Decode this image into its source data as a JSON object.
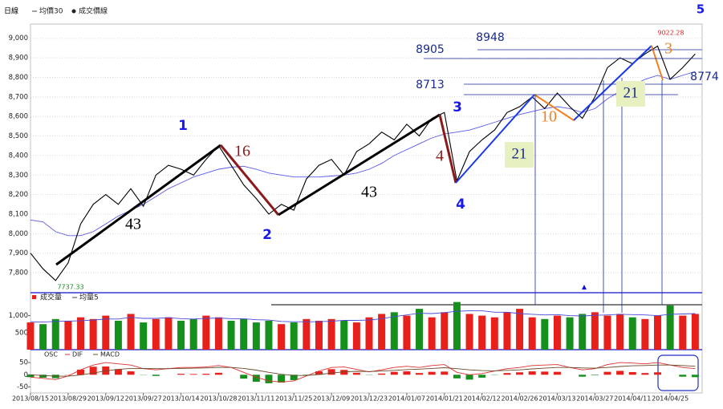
{
  "chart_data": [
    {
      "type": "line",
      "title": "日線",
      "series": [
        {
          "name": "均價30",
          "color": "#5a5ae6",
          "values": [
            8070,
            8060,
            8010,
            7990,
            7990,
            8010,
            8050,
            8090,
            8120,
            8150,
            8190,
            8230,
            8260,
            8290,
            8310,
            8330,
            8340,
            8345,
            8330,
            8310,
            8300,
            8290,
            8290,
            8290,
            8295,
            8300,
            8310,
            8330,
            8360,
            8400,
            8430,
            8460,
            8490,
            8510,
            8520,
            8530,
            8550,
            8570,
            8590,
            8610,
            8625,
            8640,
            8650,
            8640,
            8620,
            8640,
            8690,
            8730,
            8760,
            8790,
            8810,
            8790,
            8810,
            8830
          ]
        },
        {
          "name": "成交價線",
          "color": "#000000",
          "values": [
            7900,
            7820,
            7760,
            7850,
            8050,
            8150,
            8200,
            8150,
            8230,
            8140,
            8300,
            8350,
            8330,
            8300,
            8380,
            8450,
            8350,
            8250,
            8180,
            8100,
            8150,
            8120,
            8280,
            8350,
            8380,
            8300,
            8420,
            8460,
            8520,
            8480,
            8560,
            8500,
            8590,
            8620,
            8270,
            8420,
            8480,
            8530,
            8620,
            8650,
            8700,
            8640,
            8720,
            8650,
            8590,
            8700,
            8850,
            8900,
            8870,
            8920,
            8960,
            8790,
            8850,
            8920
          ]
        }
      ],
      "ylim": [
        7710,
        9040
      ],
      "yticks": [
        {
          "value": 7800,
          "label": "7,800"
        },
        {
          "value": 7900,
          "label": "7,900"
        },
        {
          "value": 8000,
          "label": "8,000"
        },
        {
          "value": 8100,
          "label": "8,100"
        },
        {
          "value": 8200,
          "label": "8,200"
        },
        {
          "value": 8300,
          "label": "8,300"
        },
        {
          "value": 8400,
          "label": "8,400"
        },
        {
          "value": 8500,
          "label": "8,500"
        },
        {
          "value": 8600,
          "label": "8,600"
        },
        {
          "value": 8700,
          "label": "8,700"
        },
        {
          "value": 8800,
          "label": "8,800"
        },
        {
          "value": 8900,
          "label": "8,900"
        },
        {
          "value": 9000,
          "label": "9,000"
        }
      ],
      "grid": true,
      "annotations": [
        "1",
        "16",
        "43",
        "2",
        "43",
        "4",
        "3",
        "4",
        "21",
        "10",
        "21",
        "3",
        "5",
        "8948",
        "8905",
        "8713",
        "8774",
        "9022.28",
        "7737.33"
      ]
    },
    {
      "type": "bar",
      "series": [
        {
          "name": "成交量",
          "type": "bar",
          "up_color": "#e8201c",
          "down_color": "#16901c",
          "values": [
            800,
            750,
            900,
            850,
            950,
            900,
            1000,
            850,
            1050,
            800,
            900,
            950,
            850,
            900,
            1000,
            950,
            850,
            900,
            800,
            850,
            750,
            800,
            900,
            850,
            900,
            850,
            800,
            950,
            1050,
            1100,
            1000,
            1200,
            950,
            1100,
            1400,
            1050,
            1000,
            950,
            1100,
            1200,
            950,
            900,
            1000,
            950,
            1050,
            1100,
            1000,
            1050,
            950,
            900,
            1000,
            1300,
            1000,
            1050
          ]
        },
        {
          "name": "均量5",
          "type": "line",
          "color": "#4a4ad8",
          "values": [
            820,
            810,
            830,
            840,
            850,
            870,
            900,
            900,
            950,
            920,
            920,
            940,
            910,
            900,
            920,
            930,
            910,
            910,
            880,
            870,
            830,
            820,
            820,
            820,
            840,
            860,
            860,
            870,
            910,
            970,
            1020,
            1070,
            1060,
            1090,
            1130,
            1140,
            1140,
            1100,
            1100,
            1060,
            1040,
            1020,
            1030,
            1000,
            990,
            1010,
            1020,
            1040,
            1030,
            1020,
            1000,
            1040,
            1050,
            1060
          ]
        }
      ],
      "ylim": [
        0,
        1650
      ],
      "yticks": [
        500,
        {
          "value": 1000,
          "label": "1,000"
        }
      ]
    },
    {
      "type": "macd",
      "categories": [
        "2013/08/15",
        null,
        null,
        "2013/08/29",
        null,
        null,
        "2013/09/12",
        null,
        null,
        "2013/09/27",
        null,
        null,
        "2013/10/14",
        null,
        null,
        "2013/10/28",
        null,
        null,
        "2013/11/11",
        null,
        null,
        "2013/11/25",
        null,
        null,
        "2013/12/09",
        null,
        null,
        "2013/12/23",
        null,
        null,
        "2014/01/07",
        null,
        null,
        "2014/01/21",
        null,
        null,
        "2014/02/12",
        null,
        null,
        "2014/02/26",
        null,
        null,
        "2014/03/13",
        null,
        null,
        "2014/03/27",
        null,
        null,
        "2014/04/11",
        null,
        null,
        "2014/04/25",
        null,
        null
      ],
      "series": [
        {
          "name": "OSC",
          "type": "bar",
          "up_color": "#e8201c",
          "down_color": "#16901c",
          "values": [
            -10,
            -12,
            -14,
            1,
            21,
            33,
            34,
            23,
            14,
            -1,
            -5,
            0,
            4,
            3,
            4,
            8,
            0,
            -16,
            -29,
            -35,
            -32,
            -22,
            -2,
            14,
            23,
            20,
            8,
            -1,
            5,
            12,
            14,
            7,
            12,
            13,
            -15,
            -20,
            -12,
            -1,
            7,
            10,
            14,
            13,
            12,
            0,
            -8,
            -2,
            12,
            16,
            11,
            7,
            10,
            0,
            -8,
            -10
          ]
        },
        {
          "name": "DIF",
          "type": "line",
          "color": "#e03030",
          "values": [
            -10,
            -15,
            -20,
            -5,
            20,
            40,
            50,
            45,
            40,
            25,
            20,
            25,
            30,
            30,
            32,
            38,
            30,
            10,
            -10,
            -25,
            -30,
            -25,
            -5,
            15,
            30,
            32,
            22,
            12,
            20,
            30,
            35,
            30,
            38,
            42,
            10,
            0,
            5,
            15,
            25,
            30,
            38,
            40,
            42,
            30,
            20,
            25,
            42,
            50,
            48,
            45,
            50,
            40,
            30,
            25
          ]
        },
        {
          "name": "MACD",
          "type": "line",
          "color": "#6a4a2a",
          "values": [
            0,
            -3,
            -6,
            -6,
            -1,
            7,
            16,
            22,
            26,
            26,
            25,
            25,
            26,
            27,
            28,
            30,
            30,
            26,
            19,
            10,
            2,
            -3,
            -3,
            1,
            7,
            12,
            14,
            13,
            15,
            18,
            21,
            23,
            26,
            29,
            25,
            20,
            17,
            16,
            18,
            20,
            24,
            27,
            30,
            30,
            28,
            27,
            30,
            34,
            37,
            38,
            40,
            40,
            38,
            35
          ]
        }
      ],
      "ylim": [
        -75,
        100
      ],
      "yticks": [
        -50,
        0,
        50
      ]
    }
  ]
}
